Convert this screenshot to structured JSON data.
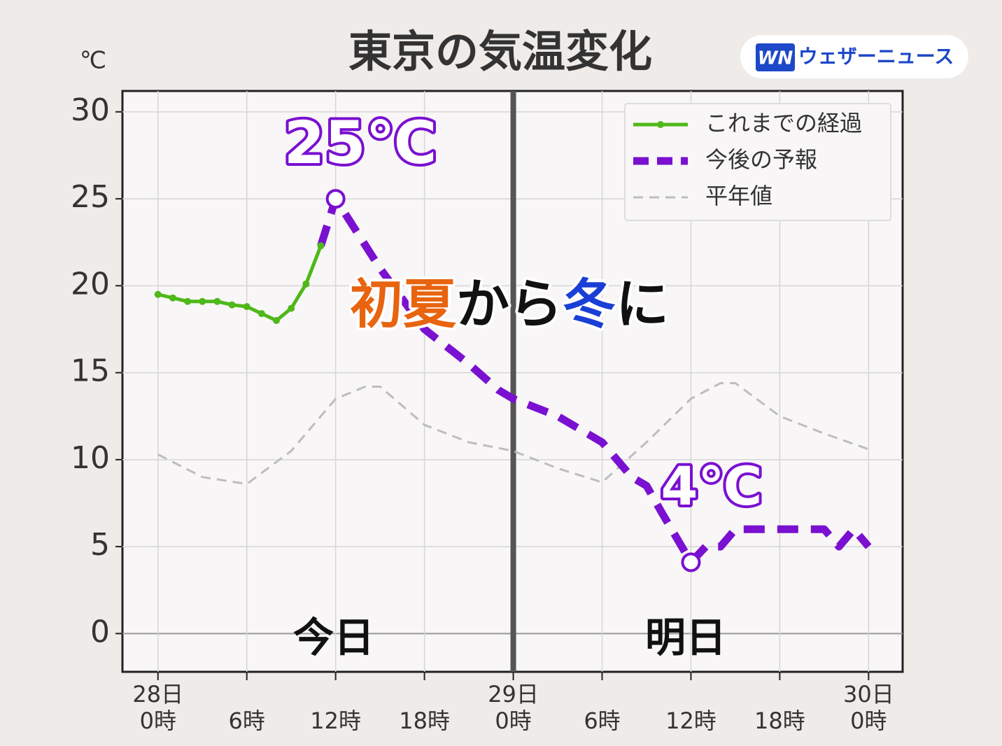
{
  "chart_data": {
    "type": "line",
    "title": "東京の気温変化",
    "logo_mark": "WN",
    "logo": "ウェザーニュース",
    "y_unit": "℃",
    "xlim": [
      -2.4,
      50.3
    ],
    "ylim": [
      -2.2,
      31.2
    ],
    "yticks": [
      0,
      5,
      10,
      15,
      20,
      25,
      30
    ],
    "xticks": [
      {
        "value": 0,
        "label": "0時"
      },
      {
        "value": 6,
        "label": "6時"
      },
      {
        "value": 12,
        "label": "12時"
      },
      {
        "value": 18,
        "label": "18時"
      },
      {
        "value": 24,
        "label": "0時"
      },
      {
        "value": 30,
        "label": "6時"
      },
      {
        "value": 36,
        "label": "12時"
      },
      {
        "value": 42,
        "label": "18時"
      },
      {
        "value": 48,
        "label": "0時"
      }
    ],
    "date_ticks": [
      {
        "value": 0,
        "label": "28日"
      },
      {
        "value": 24,
        "label": "29日"
      },
      {
        "value": 48,
        "label": "30日"
      }
    ],
    "grid": true,
    "day_divider": 24,
    "legend": "upper right",
    "series": [
      {
        "name": "これまでの経過",
        "color": "#4fb81a",
        "style": "solid-dots",
        "x": [
          0,
          1,
          2,
          3,
          4,
          5,
          6,
          7,
          8,
          9,
          10,
          11
        ],
        "values": [
          19.5,
          19.3,
          19.1,
          19.1,
          19.1,
          18.9,
          18.8,
          18.4,
          18.0,
          18.7,
          20.1,
          22.3
        ]
      },
      {
        "name": "今後の予報",
        "color": "#7a10d0",
        "style": "dashed-thick",
        "x": [
          11,
          12,
          15,
          18,
          21,
          23,
          24,
          27,
          30,
          32,
          33,
          34,
          36,
          37,
          38,
          39,
          42,
          45,
          46,
          47,
          48
        ],
        "values": [
          22.3,
          25.0,
          21.0,
          17.5,
          15.5,
          14.0,
          13.5,
          12.5,
          11.0,
          9.0,
          8.5,
          7.0,
          4.1,
          5.0,
          5.0,
          6.0,
          6.0,
          6.0,
          5.0,
          6.0,
          5.0
        ]
      },
      {
        "name": "平年値",
        "color": "#bdbdbd",
        "style": "dashed-thin",
        "x": [
          0,
          3,
          6,
          9,
          12,
          14,
          15,
          18,
          21,
          24,
          27,
          30,
          33,
          36,
          38,
          39,
          42,
          45,
          48
        ],
        "values": [
          10.3,
          9.0,
          8.6,
          10.5,
          13.5,
          14.2,
          14.2,
          12.0,
          11.0,
          10.5,
          9.5,
          8.7,
          11.0,
          13.5,
          14.4,
          14.4,
          12.5,
          11.5,
          10.6
        ]
      }
    ],
    "annotations": [
      "25℃",
      "4℃",
      "初夏",
      "から",
      "冬",
      "に",
      "今日",
      "明日"
    ]
  }
}
